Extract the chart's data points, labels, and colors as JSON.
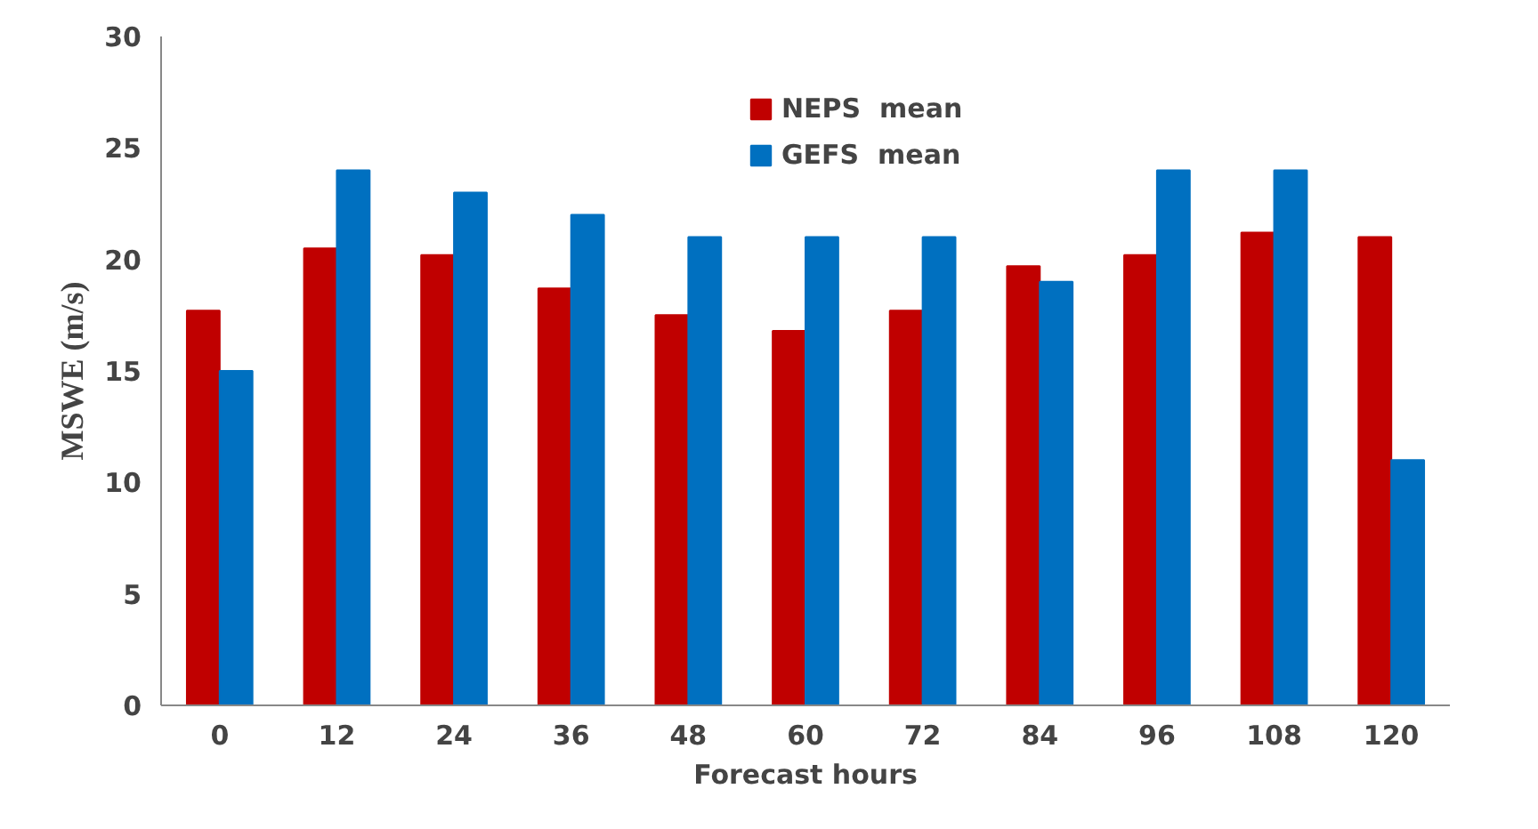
{
  "chart_data": {
    "type": "bar",
    "xlabel": "Forecast hours",
    "ylabel": "MSWE (m/s)",
    "categories": [
      "0",
      "12",
      "24",
      "36",
      "48",
      "60",
      "72",
      "84",
      "96",
      "108",
      "120"
    ],
    "series": [
      {
        "name": "NEPS  mean",
        "color": "#c00000",
        "values": [
          17.7,
          20.5,
          20.2,
          18.7,
          17.5,
          16.8,
          17.7,
          19.7,
          20.2,
          21.2,
          21.0
        ]
      },
      {
        "name": "GEFS  mean",
        "color": "#0070c0",
        "values": [
          15,
          24,
          23,
          22,
          21,
          21,
          21,
          19,
          24,
          24,
          11
        ]
      }
    ],
    "ylim": [
      0,
      30
    ],
    "yticks": [
      0,
      5,
      10,
      15,
      20,
      25,
      30
    ],
    "grid": false,
    "legend": "top"
  }
}
